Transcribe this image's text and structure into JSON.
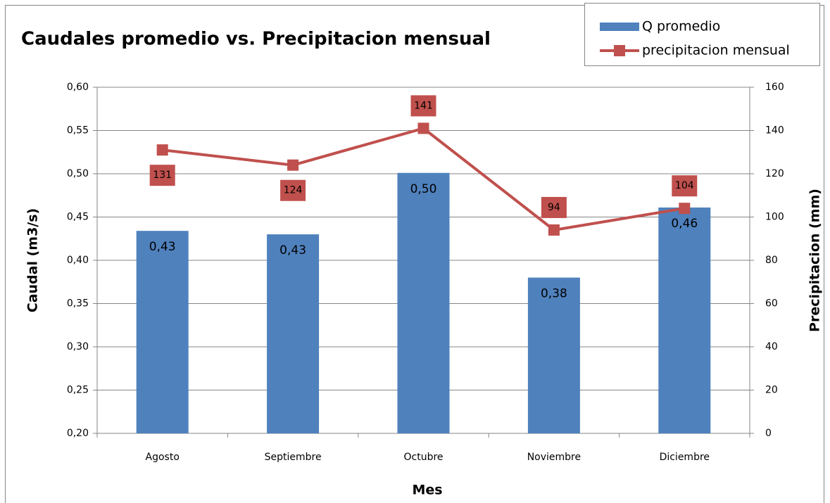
{
  "chart_data": {
    "type": "bar-line",
    "title": "Caudales promedio vs. Precipitacion mensual",
    "x_label": "Mes",
    "y_label": "Caudal (m3/s)",
    "y2_label": "Precipitacion (mm)",
    "categories": [
      "Agosto",
      "Septiembre",
      "Octubre",
      "Noviembre",
      "Diciembre"
    ],
    "series": [
      {
        "name": "Q promedio",
        "type": "bar",
        "color": "#4f81bd",
        "values": [
          0.434,
          0.43,
          0.501,
          0.38,
          0.461
        ],
        "value_labels": [
          "0,43",
          "0,43",
          "0,50",
          "0,38",
          "0,46"
        ]
      },
      {
        "name": "precipitacion mensual",
        "type": "line",
        "axis": "y2",
        "color": "#c0504d",
        "values": [
          131,
          124,
          141,
          94,
          104
        ]
      }
    ],
    "ylim": [
      0.2,
      0.6
    ],
    "yticks": [
      {
        "value": 0.2,
        "label": "0,20"
      },
      {
        "value": 0.25,
        "label": "0,25"
      },
      {
        "value": 0.3,
        "label": "0,30"
      },
      {
        "value": 0.35,
        "label": "0,35"
      },
      {
        "value": 0.4,
        "label": "0,40"
      },
      {
        "value": 0.45,
        "label": "0,45"
      },
      {
        "value": 0.5,
        "label": "0,50"
      },
      {
        "value": 0.55,
        "label": "0,55"
      },
      {
        "value": 0.6,
        "label": "0,60"
      }
    ],
    "y2lim": [
      0,
      160
    ],
    "y2ticks": [
      0,
      20,
      40,
      60,
      80,
      100,
      120,
      140,
      160
    ],
    "grid": true,
    "legend": "top-right"
  }
}
